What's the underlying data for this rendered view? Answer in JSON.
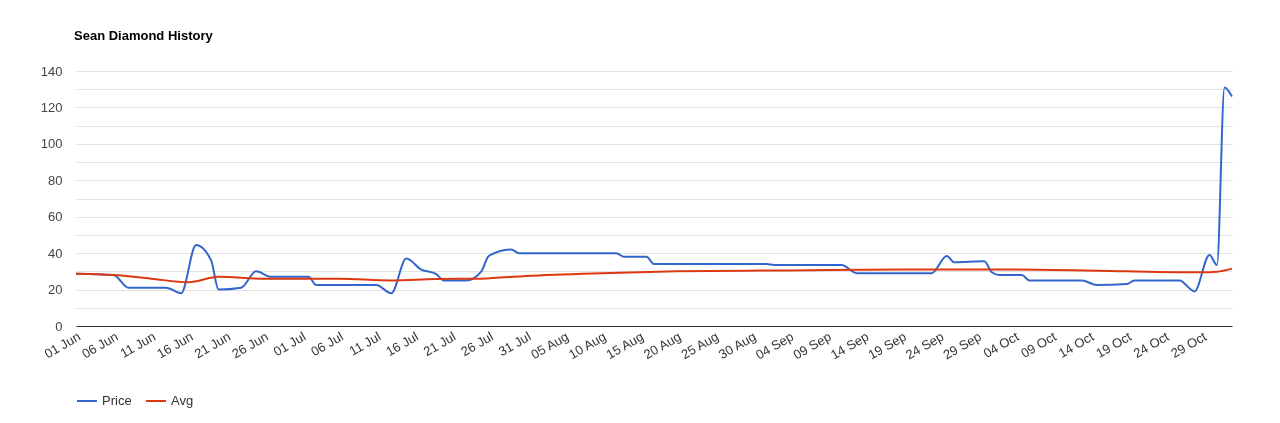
{
  "chart_data": {
    "type": "line",
    "title": "Sean Diamond History",
    "xlim": [
      "--06-01",
      "--11-02"
    ],
    "xticks": [
      {
        "value": "--06-01",
        "label": "01 Jun"
      },
      {
        "value": "--06-06",
        "label": "06 Jun"
      },
      {
        "value": "--06-11",
        "label": "11 Jun"
      },
      {
        "value": "--06-16",
        "label": "16 Jun"
      },
      {
        "value": "--06-21",
        "label": "21 Jun"
      },
      {
        "value": "--06-26",
        "label": "26 Jun"
      },
      {
        "value": "--07-01",
        "label": "01 Jul"
      },
      {
        "value": "--07-06",
        "label": "06 Jul"
      },
      {
        "value": "--07-11",
        "label": "11 Jul"
      },
      {
        "value": "--07-16",
        "label": "16 Jul"
      },
      {
        "value": "--07-21",
        "label": "21 Jul"
      },
      {
        "value": "--07-26",
        "label": "26 Jul"
      },
      {
        "value": "--07-31",
        "label": "31 Jul"
      },
      {
        "value": "--08-05",
        "label": "05 Aug"
      },
      {
        "value": "--08-10",
        "label": "10 Aug"
      },
      {
        "value": "--08-15",
        "label": "15 Aug"
      },
      {
        "value": "--08-20",
        "label": "20 Aug"
      },
      {
        "value": "--08-25",
        "label": "25 Aug"
      },
      {
        "value": "--08-30",
        "label": "30 Aug"
      },
      {
        "value": "--09-04",
        "label": "04 Sep"
      },
      {
        "value": "--09-09",
        "label": "09 Sep"
      },
      {
        "value": "--09-14",
        "label": "14 Sep"
      },
      {
        "value": "--09-19",
        "label": "19 Sep"
      },
      {
        "value": "--09-24",
        "label": "24 Sep"
      },
      {
        "value": "--09-29",
        "label": "29 Sep"
      },
      {
        "value": "--10-04",
        "label": "04 Oct"
      },
      {
        "value": "--10-09",
        "label": "09 Oct"
      },
      {
        "value": "--10-14",
        "label": "14 Oct"
      },
      {
        "value": "--10-19",
        "label": "19 Oct"
      },
      {
        "value": "--10-24",
        "label": "24 Oct"
      },
      {
        "value": "--10-29",
        "label": "29 Oct"
      }
    ],
    "ylim": [
      0,
      140
    ],
    "yticks": [
      0,
      {
        "value": 10,
        "label": null
      },
      20,
      {
        "value": 30,
        "label": null
      },
      40,
      {
        "value": 50,
        "label": null
      },
      60,
      {
        "value": 70,
        "label": null
      },
      80,
      {
        "value": 90,
        "label": null
      },
      100,
      {
        "value": 110,
        "label": null
      },
      120,
      {
        "value": 130,
        "label": null
      },
      140
    ],
    "grid": "y",
    "legend": "bottom",
    "marker": "none",
    "line_style": "solid",
    "series": [
      {
        "name": "Price",
        "color": "#3366cc",
        "x": [
          "--06-01",
          "--06-06",
          "--06-08",
          "--06-13",
          "--06-15",
          "--06-17",
          "--06-19",
          "--06-20",
          "--06-23",
          "--06-25",
          "--06-27",
          "--07-02",
          "--07-03",
          "--07-11",
          "--07-13",
          "--07-15",
          "--07-17",
          "--07-19",
          "--07-20",
          "--07-23",
          "--07-25",
          "--07-26",
          "--07-29",
          "--07-30",
          "--08-12",
          "--08-13",
          "--08-16",
          "--08-17",
          "--09-01",
          "--09-02",
          "--09-11",
          "--09-13",
          "--09-23",
          "--09-25",
          "--09-26",
          "--09-30",
          "--10-01",
          "--10-02",
          "--10-05",
          "--10-06",
          "--10-13",
          "--10-15",
          "--10-19",
          "--10-20",
          "--10-26",
          "--10-28",
          "--10-30",
          "--10-31",
          "--11-01",
          "--11-02"
        ],
        "values": [
          28.7,
          28,
          21,
          21,
          18,
          44.5,
          36,
          20,
          21,
          30,
          27,
          27,
          22.5,
          22.5,
          18,
          37,
          31,
          28.5,
          25,
          25,
          30,
          38.5,
          42,
          40,
          40,
          38,
          38,
          34,
          34,
          33.5,
          33.5,
          29,
          29,
          38.5,
          35,
          35.5,
          29.5,
          28,
          28,
          25,
          25,
          22.5,
          23,
          25,
          25,
          19,
          39,
          33.5,
          131,
          126
        ]
      },
      {
        "name": "Avg",
        "color": "#dc3912",
        "x": [
          "--06-01",
          "--06-06",
          "--06-11",
          "--06-16",
          "--06-20",
          "--06-26",
          "--07-06",
          "--07-13",
          "--07-19",
          "--07-25",
          "--07-31",
          "--08-10",
          "--08-20",
          "--09-04",
          "--09-19",
          "--10-04",
          "--10-19",
          "--10-29",
          "--10-31",
          "--11-02"
        ],
        "values": [
          28.7,
          28,
          26,
          24,
          27,
          26,
          26,
          25,
          25.8,
          26,
          27.5,
          29,
          30,
          30.5,
          31,
          31,
          30,
          29.5,
          29.8,
          31.5
        ]
      }
    ]
  }
}
